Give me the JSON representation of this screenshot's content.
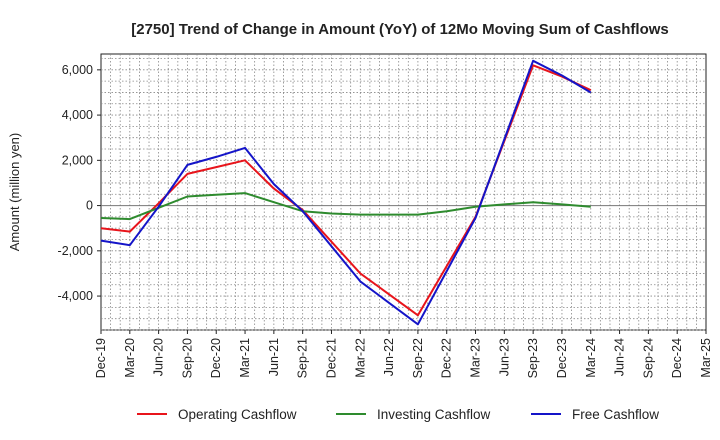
{
  "chart_data": {
    "type": "line",
    "title": "[2750]  Trend of Change in Amount (YoY) of 12Mo Moving Sum of Cashflows",
    "xlabel": "",
    "ylabel": "Amount (million yen)",
    "categories": [
      "Dec-19",
      "Mar-20",
      "Jun-20",
      "Sep-20",
      "Dec-20",
      "Mar-21",
      "Jun-21",
      "Sep-21",
      "Dec-21",
      "Mar-22",
      "Jun-22",
      "Sep-22",
      "Dec-22",
      "Mar-23",
      "Jun-23",
      "Sep-23",
      "Dec-23",
      "Mar-24",
      "Jun-24",
      "Sep-24",
      "Dec-24",
      "Mar-25"
    ],
    "ylim": [
      -5500,
      6700
    ],
    "yticks": [
      -4000,
      -2000,
      0,
      2000,
      4000,
      6000
    ],
    "ytick_labels": [
      "-4,000",
      "-2,000",
      "0",
      "2,000",
      "4,000",
      "6,000"
    ],
    "grid": true,
    "legend_position": "bottom",
    "series": [
      {
        "name": "Operating Cashflow",
        "color": "#e8141b",
        "values": [
          -1000,
          -1150,
          100,
          1400,
          1700,
          2000,
          750,
          -200,
          null,
          -3000,
          null,
          -4850,
          null,
          -500,
          null,
          6200,
          5700,
          5100,
          null,
          null,
          null,
          null
        ]
      },
      {
        "name": "Investing Cashflow",
        "color": "#2e8b2e",
        "values": [
          -550,
          -600,
          -100,
          400,
          480,
          550,
          150,
          -250,
          -350,
          -400,
          -400,
          -400,
          -250,
          -50,
          50,
          150,
          50,
          -50,
          null,
          null,
          null,
          null
        ]
      },
      {
        "name": "Free Cashflow",
        "color": "#1414c8",
        "values": [
          -1550,
          -1750,
          -50,
          1800,
          2150,
          2550,
          950,
          -250,
          null,
          -3350,
          null,
          -5250,
          null,
          -550,
          null,
          6400,
          5750,
          5000,
          null,
          null,
          null,
          null
        ]
      }
    ]
  }
}
